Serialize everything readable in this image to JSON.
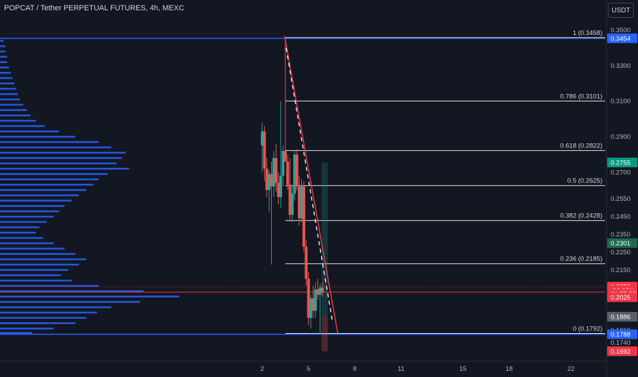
{
  "header": {
    "title": "POPCAT / Tether PERPETUAL FUTURES, 4h, MEXC",
    "currency_button": "USDT"
  },
  "colors": {
    "background": "#131722",
    "up": "#26a69a",
    "down": "#ef5350",
    "volume_profile": "#2962ff",
    "fib_level": "#ffffff",
    "range_line": "#2962ff",
    "current_price_line": "#f23645",
    "trendline": "#f23645"
  },
  "chart_data": {
    "type": "candlestick",
    "title": "POPCAT / Tether PERPETUAL FUTURES, 4h, MEXC",
    "ylim": [
      0.1692,
      0.35
    ],
    "xlim": [
      0,
      24
    ],
    "y_ticks": [
      "0.3500",
      "0.3300",
      "0.3100",
      "0.2900",
      "0.2700",
      "0.2550",
      "0.2450",
      "0.2350",
      "0.2250",
      "0.2150",
      "0.1810",
      "0.1740"
    ],
    "x_ticks": [
      "2",
      "5",
      "8",
      "11",
      "15",
      "18",
      "22"
    ],
    "x_tick_values": [
      2,
      5,
      8,
      11,
      15,
      18,
      22
    ],
    "fib_levels": [
      {
        "ratio": "1",
        "price": 0.3458,
        "label": "1 (0.3458)"
      },
      {
        "ratio": "0.786",
        "price": 0.3101,
        "label": "0.786 (0.3101)"
      },
      {
        "ratio": "0.618",
        "price": 0.2822,
        "label": "0.618 (0.2822)"
      },
      {
        "ratio": "0.5",
        "price": 0.2625,
        "label": "0.5 (0.2625)"
      },
      {
        "ratio": "0.382",
        "price": 0.2428,
        "label": "0.382 (0.2428)"
      },
      {
        "ratio": "0.236",
        "price": 0.2185,
        "label": "0.236 (0.2185)"
      },
      {
        "ratio": "0",
        "price": 0.1792,
        "label": "0 (0.1792)"
      }
    ],
    "fib_x_start": 3.5,
    "range_high": 0.3454,
    "range_low": 0.1788,
    "current_price": 0.2025,
    "price_badges": [
      {
        "label": "0.3454",
        "price": 0.3454,
        "color": "#2962ff"
      },
      {
        "label": "0.2755",
        "price": 0.2755,
        "color": "#089981"
      },
      {
        "label": "0.2301",
        "price": 0.2301,
        "color": "#1e6b4f"
      },
      {
        "label": "0.2056",
        "price": 0.2056,
        "color": "#f23645"
      },
      {
        "label": "-30.63%",
        "price": 0.2036,
        "color": "#f23645"
      },
      {
        "label": "01:55:58",
        "price": 0.2016,
        "color": "#f23645"
      },
      {
        "label": "0.2025",
        "price": 0.1996,
        "color": "#f23645"
      },
      {
        "label": "0.1886",
        "price": 0.1886,
        "color": "#5d606b"
      },
      {
        "label": "0.1788",
        "price": 0.1788,
        "color": "#2962ff"
      },
      {
        "label": "0.1692",
        "price": 0.1692,
        "color": "#f23645"
      }
    ],
    "candles": [
      {
        "x": 2.0,
        "o": 0.285,
        "h": 0.298,
        "l": 0.27,
        "c": 0.293
      },
      {
        "x": 2.15,
        "o": 0.293,
        "h": 0.296,
        "l": 0.265,
        "c": 0.272
      },
      {
        "x": 2.3,
        "o": 0.272,
        "h": 0.278,
        "l": 0.256,
        "c": 0.26
      },
      {
        "x": 2.45,
        "o": 0.26,
        "h": 0.271,
        "l": 0.248,
        "c": 0.269
      },
      {
        "x": 2.6,
        "o": 0.269,
        "h": 0.276,
        "l": 0.218,
        "c": 0.262
      },
      {
        "x": 2.75,
        "o": 0.262,
        "h": 0.282,
        "l": 0.256,
        "c": 0.278
      },
      {
        "x": 2.9,
        "o": 0.278,
        "h": 0.286,
        "l": 0.259,
        "c": 0.264
      },
      {
        "x": 3.05,
        "o": 0.264,
        "h": 0.27,
        "l": 0.252,
        "c": 0.256
      },
      {
        "x": 3.2,
        "o": 0.256,
        "h": 0.31,
        "l": 0.25,
        "c": 0.268
      },
      {
        "x": 3.35,
        "o": 0.268,
        "h": 0.285,
        "l": 0.262,
        "c": 0.282
      },
      {
        "x": 3.5,
        "o": 0.282,
        "h": 0.3454,
        "l": 0.276,
        "c": 0.276
      },
      {
        "x": 3.65,
        "o": 0.276,
        "h": 0.28,
        "l": 0.26,
        "c": 0.263
      },
      {
        "x": 3.8,
        "o": 0.263,
        "h": 0.278,
        "l": 0.242,
        "c": 0.246
      },
      {
        "x": 3.95,
        "o": 0.246,
        "h": 0.262,
        "l": 0.242,
        "c": 0.258
      },
      {
        "x": 4.1,
        "o": 0.258,
        "h": 0.282,
        "l": 0.254,
        "c": 0.28
      },
      {
        "x": 4.25,
        "o": 0.28,
        "h": 0.283,
        "l": 0.26,
        "c": 0.262
      },
      {
        "x": 4.4,
        "o": 0.262,
        "h": 0.268,
        "l": 0.24,
        "c": 0.244
      },
      {
        "x": 4.55,
        "o": 0.244,
        "h": 0.266,
        "l": 0.242,
        "c": 0.262
      },
      {
        "x": 4.7,
        "o": 0.262,
        "h": 0.265,
        "l": 0.225,
        "c": 0.228
      },
      {
        "x": 4.85,
        "o": 0.228,
        "h": 0.232,
        "l": 0.206,
        "c": 0.21
      },
      {
        "x": 5.0,
        "o": 0.21,
        "h": 0.214,
        "l": 0.184,
        "c": 0.188
      },
      {
        "x": 5.15,
        "o": 0.188,
        "h": 0.201,
        "l": 0.182,
        "c": 0.199
      },
      {
        "x": 5.3,
        "o": 0.199,
        "h": 0.206,
        "l": 0.188,
        "c": 0.192
      },
      {
        "x": 5.45,
        "o": 0.192,
        "h": 0.208,
        "l": 0.188,
        "c": 0.204
      },
      {
        "x": 5.6,
        "o": 0.204,
        "h": 0.21,
        "l": 0.198,
        "c": 0.201
      },
      {
        "x": 5.75,
        "o": 0.201,
        "h": 0.207,
        "l": 0.179,
        "c": 0.205
      },
      {
        "x": 5.9,
        "o": 0.205,
        "h": 0.208,
        "l": 0.2,
        "c": 0.2025
      }
    ],
    "position_tool": {
      "x0": 5.85,
      "x1": 6.25,
      "entry": 0.1886,
      "target": 0.2755,
      "stop": 0.1692
    },
    "trendline": {
      "x0": 3.45,
      "y0": 0.347,
      "x1": 6.9,
      "y1": 0.1792
    },
    "dashed_channel": {
      "x0": 3.55,
      "y0": 0.34,
      "x1": 6.55,
      "y1": 0.186
    },
    "volume_profile": [
      {
        "price": 0.344,
        "size": 0.02
      },
      {
        "price": 0.341,
        "size": 0.03
      },
      {
        "price": 0.338,
        "size": 0.03
      },
      {
        "price": 0.335,
        "size": 0.04
      },
      {
        "price": 0.332,
        "size": 0.04
      },
      {
        "price": 0.329,
        "size": 0.05
      },
      {
        "price": 0.326,
        "size": 0.06
      },
      {
        "price": 0.323,
        "size": 0.07
      },
      {
        "price": 0.32,
        "size": 0.08
      },
      {
        "price": 0.317,
        "size": 0.09
      },
      {
        "price": 0.314,
        "size": 0.1
      },
      {
        "price": 0.311,
        "size": 0.11
      },
      {
        "price": 0.308,
        "size": 0.13
      },
      {
        "price": 0.305,
        "size": 0.15
      },
      {
        "price": 0.302,
        "size": 0.17
      },
      {
        "price": 0.299,
        "size": 0.2
      },
      {
        "price": 0.296,
        "size": 0.25
      },
      {
        "price": 0.293,
        "size": 0.33
      },
      {
        "price": 0.29,
        "size": 0.42
      },
      {
        "price": 0.287,
        "size": 0.55
      },
      {
        "price": 0.284,
        "size": 0.62
      },
      {
        "price": 0.281,
        "size": 0.7
      },
      {
        "price": 0.278,
        "size": 0.68
      },
      {
        "price": 0.275,
        "size": 0.65
      },
      {
        "price": 0.272,
        "size": 0.72
      },
      {
        "price": 0.269,
        "size": 0.6
      },
      {
        "price": 0.266,
        "size": 0.55
      },
      {
        "price": 0.263,
        "size": 0.52
      },
      {
        "price": 0.26,
        "size": 0.48
      },
      {
        "price": 0.257,
        "size": 0.44
      },
      {
        "price": 0.254,
        "size": 0.4
      },
      {
        "price": 0.251,
        "size": 0.36
      },
      {
        "price": 0.248,
        "size": 0.33
      },
      {
        "price": 0.245,
        "size": 0.3
      },
      {
        "price": 0.242,
        "size": 0.26
      },
      {
        "price": 0.239,
        "size": 0.22
      },
      {
        "price": 0.236,
        "size": 0.2
      },
      {
        "price": 0.233,
        "size": 0.24
      },
      {
        "price": 0.23,
        "size": 0.3
      },
      {
        "price": 0.227,
        "size": 0.36
      },
      {
        "price": 0.224,
        "size": 0.42
      },
      {
        "price": 0.221,
        "size": 0.48
      },
      {
        "price": 0.218,
        "size": 0.44
      },
      {
        "price": 0.215,
        "size": 0.38
      },
      {
        "price": 0.212,
        "size": 0.34
      },
      {
        "price": 0.209,
        "size": 0.4
      },
      {
        "price": 0.206,
        "size": 0.55
      },
      {
        "price": 0.203,
        "size": 0.8
      },
      {
        "price": 0.2,
        "size": 1.0
      },
      {
        "price": 0.197,
        "size": 0.78
      },
      {
        "price": 0.194,
        "size": 0.62
      },
      {
        "price": 0.191,
        "size": 0.54
      },
      {
        "price": 0.188,
        "size": 0.48
      },
      {
        "price": 0.185,
        "size": 0.42
      },
      {
        "price": 0.182,
        "size": 0.3
      },
      {
        "price": 0.1795,
        "size": 0.18
      }
    ],
    "x_axis_label": "",
    "y_axis_label": ""
  }
}
